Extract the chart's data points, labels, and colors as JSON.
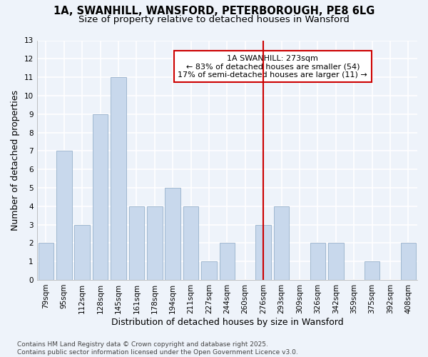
{
  "title_line1": "1A, SWANHILL, WANSFORD, PETERBOROUGH, PE8 6LG",
  "title_line2": "Size of property relative to detached houses in Wansford",
  "xlabel": "Distribution of detached houses by size in Wansford",
  "ylabel": "Number of detached properties",
  "categories": [
    "79sqm",
    "95sqm",
    "112sqm",
    "128sqm",
    "145sqm",
    "161sqm",
    "178sqm",
    "194sqm",
    "211sqm",
    "227sqm",
    "244sqm",
    "260sqm",
    "276sqm",
    "293sqm",
    "309sqm",
    "326sqm",
    "342sqm",
    "359sqm",
    "375sqm",
    "392sqm",
    "408sqm"
  ],
  "values": [
    2,
    7,
    3,
    9,
    11,
    4,
    4,
    5,
    4,
    1,
    2,
    0,
    3,
    4,
    0,
    2,
    2,
    0,
    1,
    0,
    2
  ],
  "bar_color": "#c8d8ec",
  "bar_edge_color": "#a0b8d0",
  "background_color": "#eef3fa",
  "grid_color": "#ffffff",
  "vline_x": 12,
  "vline_color": "#cc0000",
  "annotation_text": "1A SWANHILL: 273sqm\n← 83% of detached houses are smaller (54)\n17% of semi-detached houses are larger (11) →",
  "annotation_box_facecolor": "#ffffff",
  "annotation_box_edgecolor": "#cc0000",
  "ylim": [
    0,
    13
  ],
  "yticks": [
    0,
    1,
    2,
    3,
    4,
    5,
    6,
    7,
    8,
    9,
    10,
    11,
    12,
    13
  ],
  "footer_text": "Contains HM Land Registry data © Crown copyright and database right 2025.\nContains public sector information licensed under the Open Government Licence v3.0.",
  "title_fontsize": 10.5,
  "subtitle_fontsize": 9.5,
  "axis_label_fontsize": 9,
  "tick_fontsize": 7.5,
  "annotation_fontsize": 8,
  "footer_fontsize": 6.5
}
